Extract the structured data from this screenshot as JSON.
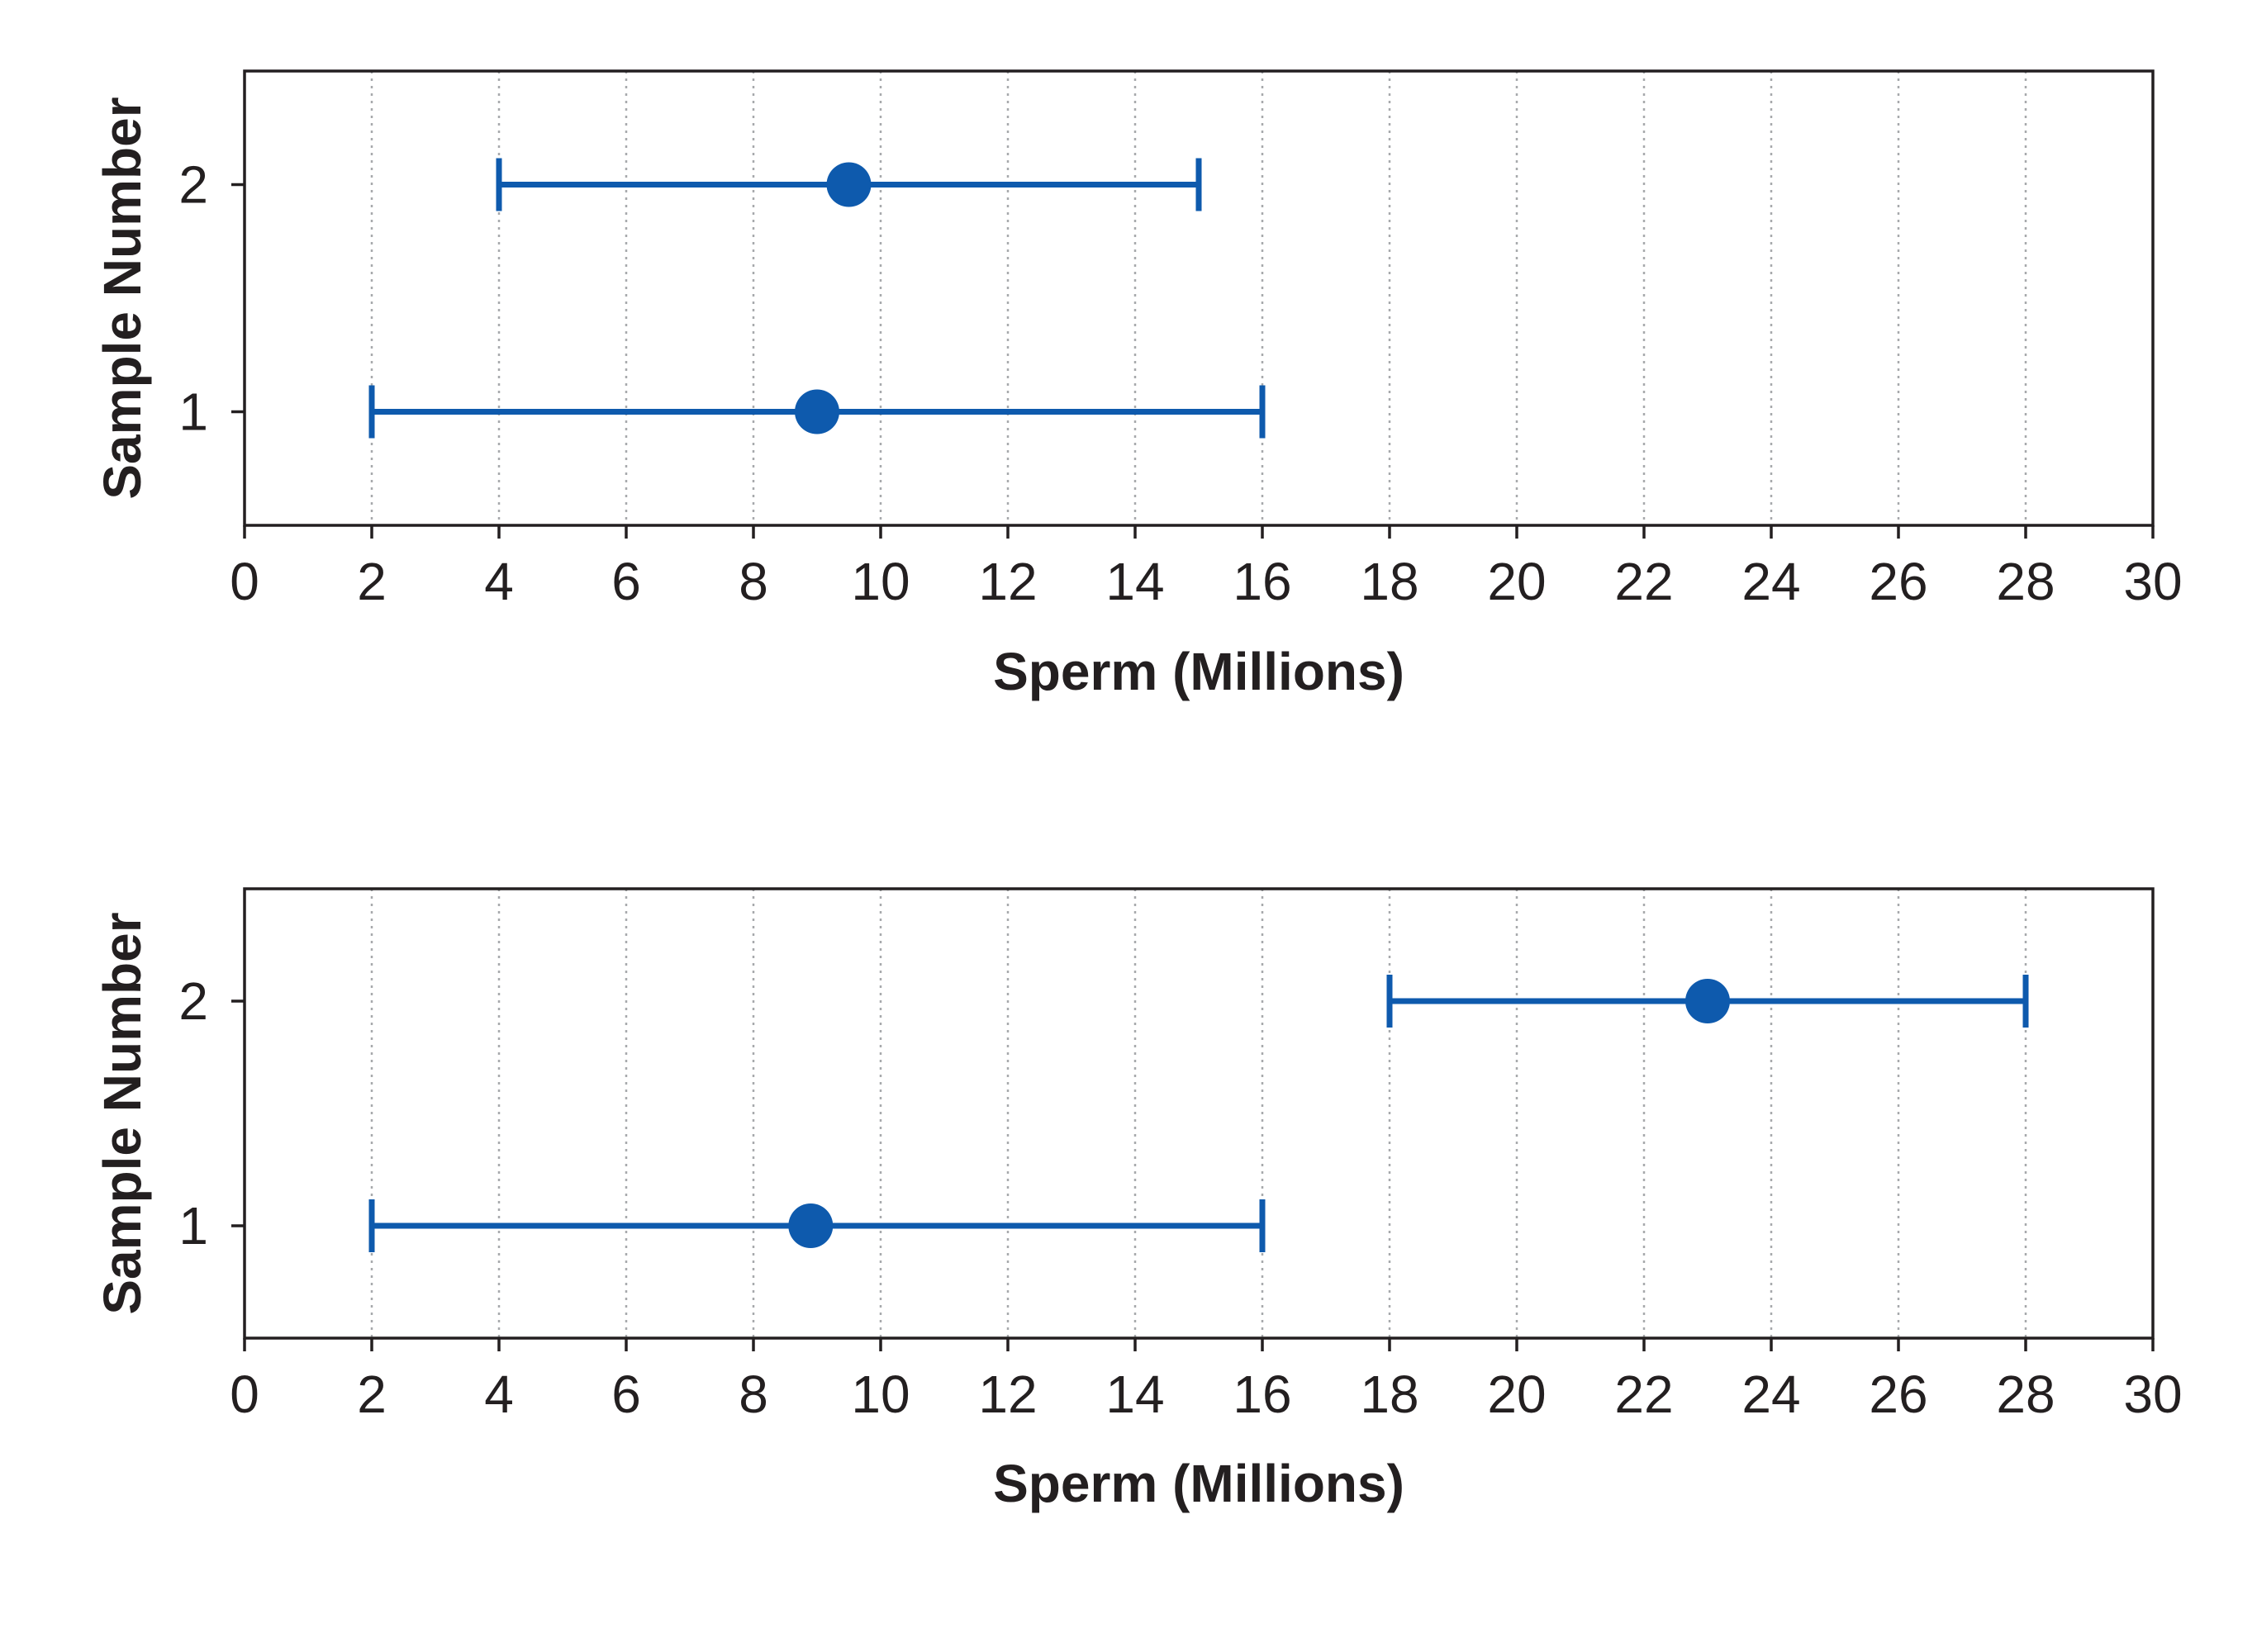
{
  "style": {
    "series_color": "#0e5aad",
    "frame_color": "#231f20",
    "grid_color": "#a7a9ac",
    "text_color": "#231f20"
  },
  "chart_data": [
    {
      "type": "scatter",
      "orientation": "horizontal",
      "xlabel": "Sperm (Millions)",
      "ylabel": "Sample Number",
      "xlim": [
        0,
        30
      ],
      "ylim": [
        0.5,
        2.5
      ],
      "x_ticks": [
        "0",
        "2",
        "4",
        "6",
        "8",
        "10",
        "12",
        "14",
        "16",
        "18",
        "20",
        "22",
        "24",
        "26",
        "28",
        "30"
      ],
      "y_ticks": [
        "1",
        "2"
      ],
      "grid": "vertical dotted",
      "points": [
        {
          "sample": 1,
          "estimate": 9,
          "low": 2,
          "high": 16
        },
        {
          "sample": 2,
          "estimate": 9.5,
          "low": 4,
          "high": 15
        }
      ]
    },
    {
      "type": "scatter",
      "orientation": "horizontal",
      "xlabel": "Sperm (Millions)",
      "ylabel": "Sample Number",
      "xlim": [
        0,
        30
      ],
      "ylim": [
        0.5,
        2.5
      ],
      "x_ticks": [
        "0",
        "2",
        "4",
        "6",
        "8",
        "10",
        "12",
        "14",
        "16",
        "18",
        "20",
        "22",
        "24",
        "26",
        "28",
        "30"
      ],
      "y_ticks": [
        "1",
        "2"
      ],
      "grid": "vertical dotted",
      "points": [
        {
          "sample": 1,
          "estimate": 8.9,
          "low": 2,
          "high": 16
        },
        {
          "sample": 2,
          "estimate": 23,
          "low": 18,
          "high": 28
        }
      ]
    }
  ]
}
